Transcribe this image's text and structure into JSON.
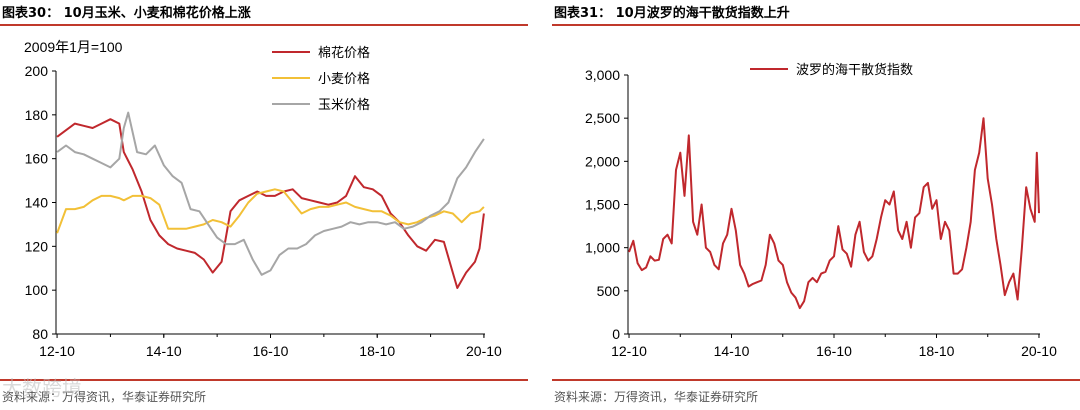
{
  "left_panel": {
    "title": "图表30： 10月玉米、小麦和棉花价格上涨",
    "source": "资料来源：万得资讯，华泰证券研究所",
    "unit_label": "2009年1月=100"
  },
  "right_panel": {
    "title": "图表31： 10月波罗的海干散货指数上升",
    "source": "资料来源：万得资讯，华泰证券研究所"
  },
  "watermark": "大数跨境",
  "colors": {
    "cotton": "#c0282d",
    "wheat": "#f2c037",
    "corn": "#a6a6a6",
    "bdi": "#c0282d",
    "rule": "#c0392b"
  },
  "chart_data": [
    {
      "type": "line",
      "ylim": [
        80,
        200
      ],
      "yticks": [
        80,
        100,
        120,
        140,
        160,
        180,
        200
      ],
      "xticks": [
        "12-10",
        "14-10",
        "16-10",
        "18-10",
        "20-10"
      ],
      "legend_position": "top-right",
      "series": [
        {
          "name": "棉花价格",
          "color_key": "cotton",
          "points": [
            [
              "2012-10",
              170
            ],
            [
              "2012-12",
              173
            ],
            [
              "2013-02",
              176
            ],
            [
              "2013-04",
              175
            ],
            [
              "2013-06",
              174
            ],
            [
              "2013-08",
              176
            ],
            [
              "2013-10",
              178
            ],
            [
              "2013-12",
              176
            ],
            [
              "2014-01",
              163
            ],
            [
              "2014-03",
              155
            ],
            [
              "2014-05",
              145
            ],
            [
              "2014-07",
              132
            ],
            [
              "2014-09",
              125
            ],
            [
              "2014-11",
              121
            ],
            [
              "2015-01",
              119
            ],
            [
              "2015-03",
              118
            ],
            [
              "2015-05",
              117
            ],
            [
              "2015-07",
              114
            ],
            [
              "2015-09",
              108
            ],
            [
              "2015-11",
              113
            ],
            [
              "2016-01",
              136
            ],
            [
              "2016-03",
              141
            ],
            [
              "2016-05",
              143
            ],
            [
              "2016-07",
              145
            ],
            [
              "2016-09",
              143
            ],
            [
              "2016-11",
              143
            ],
            [
              "2017-01",
              145
            ],
            [
              "2017-03",
              146
            ],
            [
              "2017-05",
              142
            ],
            [
              "2017-07",
              141
            ],
            [
              "2017-09",
              140
            ],
            [
              "2017-11",
              139
            ],
            [
              "2018-01",
              140
            ],
            [
              "2018-03",
              143
            ],
            [
              "2018-05",
              152
            ],
            [
              "2018-07",
              147
            ],
            [
              "2018-09",
              146
            ],
            [
              "2018-11",
              143
            ],
            [
              "2019-01",
              135
            ],
            [
              "2019-03",
              131
            ],
            [
              "2019-05",
              125
            ],
            [
              "2019-07",
              120
            ],
            [
              "2019-09",
              118
            ],
            [
              "2019-11",
              123
            ],
            [
              "2020-01",
              122
            ],
            [
              "2020-03",
              108
            ],
            [
              "2020-04",
              101
            ],
            [
              "2020-06",
              108
            ],
            [
              "2020-08",
              113
            ],
            [
              "2020-09",
              119
            ],
            [
              "2020-10",
              135
            ]
          ]
        },
        {
          "name": "小麦价格",
          "color_key": "wheat",
          "points": [
            [
              "2012-10",
              126
            ],
            [
              "2012-12",
              137
            ],
            [
              "2013-02",
              137
            ],
            [
              "2013-04",
              138
            ],
            [
              "2013-06",
              141
            ],
            [
              "2013-08",
              143
            ],
            [
              "2013-10",
              143
            ],
            [
              "2013-12",
              142
            ],
            [
              "2014-01",
              141
            ],
            [
              "2014-03",
              143
            ],
            [
              "2014-05",
              143
            ],
            [
              "2014-07",
              142
            ],
            [
              "2014-09",
              139
            ],
            [
              "2014-11",
              128
            ],
            [
              "2015-01",
              128
            ],
            [
              "2015-03",
              128
            ],
            [
              "2015-05",
              129
            ],
            [
              "2015-07",
              130
            ],
            [
              "2015-09",
              132
            ],
            [
              "2015-11",
              131
            ],
            [
              "2016-01",
              129
            ],
            [
              "2016-03",
              134
            ],
            [
              "2016-05",
              140
            ],
            [
              "2016-07",
              144
            ],
            [
              "2016-09",
              145
            ],
            [
              "2016-11",
              146
            ],
            [
              "2017-01",
              145
            ],
            [
              "2017-03",
              140
            ],
            [
              "2017-05",
              135
            ],
            [
              "2017-07",
              137
            ],
            [
              "2017-09",
              138
            ],
            [
              "2017-11",
              138
            ],
            [
              "2018-01",
              139
            ],
            [
              "2018-03",
              140
            ],
            [
              "2018-05",
              138
            ],
            [
              "2018-07",
              137
            ],
            [
              "2018-09",
              136
            ],
            [
              "2018-11",
              136
            ],
            [
              "2019-01",
              134
            ],
            [
              "2019-03",
              131
            ],
            [
              "2019-05",
              130
            ],
            [
              "2019-07",
              131
            ],
            [
              "2019-09",
              133
            ],
            [
              "2019-11",
              134
            ],
            [
              "2020-01",
              136
            ],
            [
              "2020-03",
              135
            ],
            [
              "2020-05",
              131
            ],
            [
              "2020-07",
              135
            ],
            [
              "2020-09",
              136
            ],
            [
              "2020-10",
              138
            ]
          ]
        },
        {
          "name": "玉米价格",
          "color_key": "corn",
          "points": [
            [
              "2012-10",
              163
            ],
            [
              "2012-12",
              166
            ],
            [
              "2013-02",
              163
            ],
            [
              "2013-04",
              162
            ],
            [
              "2013-06",
              160
            ],
            [
              "2013-08",
              158
            ],
            [
              "2013-10",
              156
            ],
            [
              "2013-12",
              160
            ],
            [
              "2014-01",
              174
            ],
            [
              "2014-02",
              181
            ],
            [
              "2014-04",
              163
            ],
            [
              "2014-06",
              162
            ],
            [
              "2014-08",
              166
            ],
            [
              "2014-10",
              157
            ],
            [
              "2014-12",
              152
            ],
            [
              "2015-02",
              149
            ],
            [
              "2015-04",
              137
            ],
            [
              "2015-06",
              136
            ],
            [
              "2015-08",
              130
            ],
            [
              "2015-10",
              124
            ],
            [
              "2015-12",
              121
            ],
            [
              "2016-02",
              121
            ],
            [
              "2016-04",
              123
            ],
            [
              "2016-06",
              114
            ],
            [
              "2016-08",
              107
            ],
            [
              "2016-10",
              109
            ],
            [
              "2016-12",
              116
            ],
            [
              "2017-02",
              119
            ],
            [
              "2017-04",
              119
            ],
            [
              "2017-06",
              121
            ],
            [
              "2017-08",
              125
            ],
            [
              "2017-10",
              127
            ],
            [
              "2017-12",
              128
            ],
            [
              "2018-02",
              129
            ],
            [
              "2018-04",
              131
            ],
            [
              "2018-06",
              130
            ],
            [
              "2018-08",
              131
            ],
            [
              "2018-10",
              131
            ],
            [
              "2018-12",
              130
            ],
            [
              "2019-02",
              131
            ],
            [
              "2019-04",
              128
            ],
            [
              "2019-06",
              129
            ],
            [
              "2019-08",
              131
            ],
            [
              "2019-10",
              134
            ],
            [
              "2019-12",
              136
            ],
            [
              "2020-02",
              140
            ],
            [
              "2020-04",
              151
            ],
            [
              "2020-06",
              156
            ],
            [
              "2020-08",
              163
            ],
            [
              "2020-10",
              169
            ]
          ]
        }
      ]
    },
    {
      "type": "line",
      "ylim": [
        0,
        3000
      ],
      "yticks": [
        0,
        500,
        1000,
        1500,
        2000,
        2500,
        3000
      ],
      "ytick_labels": [
        "0",
        "500",
        "1,000",
        "1,500",
        "2,000",
        "2,500",
        "3,000"
      ],
      "xticks": [
        "12-10",
        "14-10",
        "16-10",
        "18-10",
        "20-10"
      ],
      "legend_position": "top-center",
      "series": [
        {
          "name": "波罗的海干散货指数",
          "color_key": "bdi",
          "points": [
            [
              "2012-10",
              950
            ],
            [
              "2012-11",
              1080
            ],
            [
              "2012-12",
              820
            ],
            [
              "2013-01",
              740
            ],
            [
              "2013-02",
              770
            ],
            [
              "2013-03",
              900
            ],
            [
              "2013-04",
              850
            ],
            [
              "2013-05",
              860
            ],
            [
              "2013-06",
              1100
            ],
            [
              "2013-07",
              1150
            ],
            [
              "2013-08",
              1050
            ],
            [
              "2013-09",
              1900
            ],
            [
              "2013-10",
              2100
            ],
            [
              "2013-11",
              1600
            ],
            [
              "2013-12",
              2300
            ],
            [
              "2014-01",
              1300
            ],
            [
              "2014-02",
              1150
            ],
            [
              "2014-03",
              1500
            ],
            [
              "2014-04",
              1000
            ],
            [
              "2014-05",
              950
            ],
            [
              "2014-06",
              800
            ],
            [
              "2014-07",
              750
            ],
            [
              "2014-08",
              1050
            ],
            [
              "2014-09",
              1150
            ],
            [
              "2014-10",
              1450
            ],
            [
              "2014-11",
              1200
            ],
            [
              "2014-12",
              800
            ],
            [
              "2015-01",
              700
            ],
            [
              "2015-02",
              550
            ],
            [
              "2015-03",
              580
            ],
            [
              "2015-04",
              600
            ],
            [
              "2015-05",
              620
            ],
            [
              "2015-06",
              800
            ],
            [
              "2015-07",
              1150
            ],
            [
              "2015-08",
              1050
            ],
            [
              "2015-09",
              850
            ],
            [
              "2015-10",
              800
            ],
            [
              "2015-11",
              600
            ],
            [
              "2015-12",
              480
            ],
            [
              "2016-01",
              420
            ],
            [
              "2016-02",
              300
            ],
            [
              "2016-03",
              380
            ],
            [
              "2016-04",
              600
            ],
            [
              "2016-05",
              650
            ],
            [
              "2016-06",
              600
            ],
            [
              "2016-07",
              700
            ],
            [
              "2016-08",
              720
            ],
            [
              "2016-09",
              850
            ],
            [
              "2016-10",
              900
            ],
            [
              "2016-11",
              1250
            ],
            [
              "2016-12",
              980
            ],
            [
              "2017-01",
              930
            ],
            [
              "2017-02",
              780
            ],
            [
              "2017-03",
              1150
            ],
            [
              "2017-04",
              1300
            ],
            [
              "2017-05",
              950
            ],
            [
              "2017-06",
              850
            ],
            [
              "2017-07",
              900
            ],
            [
              "2017-08",
              1100
            ],
            [
              "2017-09",
              1350
            ],
            [
              "2017-10",
              1550
            ],
            [
              "2017-11",
              1500
            ],
            [
              "2017-12",
              1650
            ],
            [
              "2018-01",
              1200
            ],
            [
              "2018-02",
              1100
            ],
            [
              "2018-03",
              1300
            ],
            [
              "2018-04",
              1000
            ],
            [
              "2018-05",
              1350
            ],
            [
              "2018-06",
              1400
            ],
            [
              "2018-07",
              1700
            ],
            [
              "2018-08",
              1750
            ],
            [
              "2018-09",
              1450
            ],
            [
              "2018-10",
              1550
            ],
            [
              "2018-11",
              1100
            ],
            [
              "2018-12",
              1300
            ],
            [
              "2019-01",
              1200
            ],
            [
              "2019-02",
              700
            ],
            [
              "2019-03",
              700
            ],
            [
              "2019-04",
              750
            ],
            [
              "2019-05",
              1000
            ],
            [
              "2019-06",
              1300
            ],
            [
              "2019-07",
              1900
            ],
            [
              "2019-08",
              2100
            ],
            [
              "2019-09",
              2500
            ],
            [
              "2019-10",
              1800
            ],
            [
              "2019-11",
              1500
            ],
            [
              "2019-12",
              1100
            ],
            [
              "2020-01",
              800
            ],
            [
              "2020-02",
              450
            ],
            [
              "2020-03",
              600
            ],
            [
              "2020-04",
              700
            ],
            [
              "2020-05",
              400
            ],
            [
              "2020-06",
              1000
            ],
            [
              "2020-07",
              1700
            ],
            [
              "2020-08",
              1450
            ],
            [
              "2020-09",
              1300
            ],
            [
              "2020-09b",
              2100
            ],
            [
              "2020-10",
              1400
            ]
          ]
        }
      ]
    }
  ]
}
